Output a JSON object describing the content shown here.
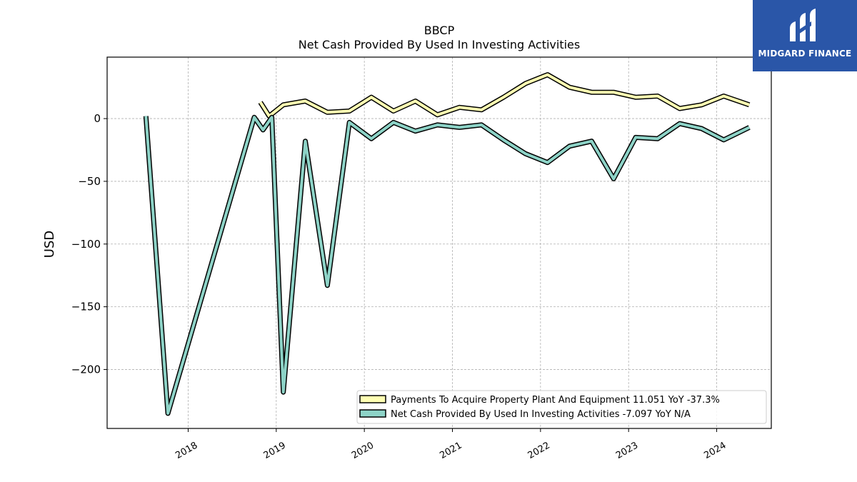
{
  "brand": {
    "name": "MIDGARD FINANCE",
    "color": "#2a56a8"
  },
  "chart_data": {
    "type": "line",
    "title": "BBCP",
    "subtitle": "Net Cash Provided By Used In Investing Activities",
    "xlabel": "",
    "ylabel": "USD",
    "xlim": [
      2017.08,
      2024.62
    ],
    "ylim": [
      -247,
      49
    ],
    "x_ticks": [
      "2018",
      "2019",
      "2020",
      "2021",
      "2022",
      "2023",
      "2024"
    ],
    "y_ticks": [
      0,
      -50,
      -100,
      -150,
      -200
    ],
    "grid": true,
    "legend_position": "lower-right",
    "series": [
      {
        "name": "Payments To Acquire Property Plant And Equipment  11.051 YoY -37.3%",
        "color": "#ffffb3",
        "x": [
          2018.82,
          2018.92,
          2019.08,
          2019.33,
          2019.58,
          2019.83,
          2020.08,
          2020.33,
          2020.58,
          2020.83,
          2021.08,
          2021.33,
          2021.58,
          2021.83,
          2022.08,
          2022.33,
          2022.58,
          2022.83,
          2023.08,
          2023.33,
          2023.58,
          2023.83,
          2024.08,
          2024.37
        ],
        "y": [
          13,
          2,
          11,
          14,
          5,
          6,
          17,
          6,
          14,
          3,
          9,
          7,
          17,
          28,
          35,
          25,
          21,
          21,
          17,
          18,
          8,
          11,
          18,
          11
        ]
      },
      {
        "name": "Net Cash Provided By Used In Investing Activities  -7.097 YoY N/A",
        "color": "#8dd3c7",
        "x": [
          2017.52,
          2017.77,
          2018.75,
          2018.85,
          2018.95,
          2019.08,
          2019.33,
          2019.58,
          2019.83,
          2020.08,
          2020.33,
          2020.58,
          2020.83,
          2021.08,
          2021.33,
          2021.58,
          2021.83,
          2022.08,
          2022.33,
          2022.58,
          2022.83,
          2023.08,
          2023.33,
          2023.58,
          2023.83,
          2024.08,
          2024.37
        ],
        "y": [
          2,
          -235,
          1,
          -9,
          1,
          -218,
          -18,
          -133,
          -3,
          -16,
          -3,
          -10,
          -5,
          -7,
          -5,
          -17,
          -28,
          -35,
          -22,
          -18,
          -48,
          -15,
          -16,
          -4,
          -8,
          -17,
          -7
        ]
      }
    ]
  }
}
